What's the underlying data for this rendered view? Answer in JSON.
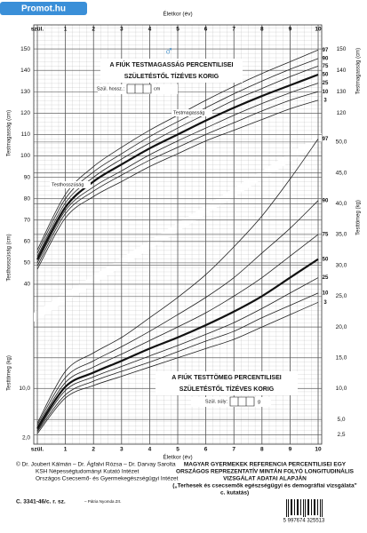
{
  "badge": "Promot.hu",
  "symbol": "♂",
  "chart_data": {
    "type": "line",
    "xlabel": "Életkor (év)",
    "ylabel": "Testmagasság (cm)",
    "ylabel_lower": "Testhosszúság (cm)",
    "y2label": "Testtömeg (kg)",
    "x": [
      0,
      1,
      2,
      3,
      4,
      5,
      6,
      7,
      8,
      9,
      10
    ],
    "xlim": [
      0,
      10
    ],
    "xticks": [
      {
        "value": 0,
        "label": "szül."
      },
      1,
      2,
      3,
      4,
      5,
      6,
      7,
      8,
      9,
      10
    ],
    "ylim": [
      35,
      160
    ],
    "yticks": [
      40,
      50,
      60,
      70,
      80,
      90,
      100,
      110,
      120,
      130,
      140,
      150
    ],
    "y_right_ticks": [
      120,
      130,
      140,
      150
    ],
    "y2lim": [
      2,
      52
    ],
    "y2ticks": [
      {
        "value": 2.5,
        "label": "2,5"
      },
      {
        "value": 5,
        "label": "5,0"
      },
      {
        "value": 10,
        "label": "10,0"
      },
      {
        "value": 15,
        "label": "15,0"
      },
      {
        "value": 20,
        "label": "20,0"
      },
      {
        "value": 25,
        "label": "25,0"
      },
      {
        "value": 30,
        "label": "30,0"
      },
      {
        "value": 35,
        "label": "35,0"
      },
      {
        "value": 40,
        "label": "40,0"
      },
      {
        "value": 45,
        "label": "45,0"
      },
      {
        "value": 50,
        "label": "50,0"
      }
    ],
    "y2_left_ticks": [
      {
        "value": 10,
        "label": "10,0"
      },
      {
        "value": 2,
        "label": "2,0"
      }
    ],
    "grid": true,
    "series": [
      {
        "name": "97",
        "axis": "y",
        "color": "#222",
        "width": 0.8,
        "values": [
          56,
          82,
          95,
          104,
          112,
          119,
          126,
          132.5,
          138.5,
          144,
          149.5
        ]
      },
      {
        "name": "90",
        "axis": "y",
        "color": "#222",
        "width": 0.8,
        "values": [
          54.5,
          80,
          92.5,
          101,
          109,
          116,
          122.5,
          129,
          135,
          140.5,
          145.5
        ]
      },
      {
        "name": "75",
        "axis": "y",
        "color": "#222",
        "width": 0.8,
        "values": [
          53,
          78,
          90,
          98.5,
          106,
          113,
          119.5,
          126,
          131.5,
          137,
          142
        ]
      },
      {
        "name": "50",
        "axis": "y",
        "color": "#111",
        "width": 2.2,
        "values": [
          51.5,
          76,
          88,
          96,
          103.5,
          110,
          116.5,
          122.5,
          128,
          133,
          138
        ]
      },
      {
        "name": "25",
        "axis": "y",
        "color": "#222",
        "width": 0.8,
        "values": [
          50,
          74.5,
          85.5,
          93,
          100.5,
          107,
          113,
          119,
          124.5,
          129.5,
          134
        ]
      },
      {
        "name": "10",
        "axis": "y",
        "color": "#222",
        "width": 0.8,
        "values": [
          48.5,
          73,
          83.5,
          91,
          98,
          104,
          110,
          115.5,
          121,
          126,
          130
        ]
      },
      {
        "name": "3",
        "axis": "y",
        "color": "#222",
        "width": 0.8,
        "values": [
          47,
          71,
          81,
          88,
          95,
          101,
          107,
          112,
          117,
          122,
          126
        ]
      },
      {
        "name": "97",
        "axis": "y2",
        "color": "#222",
        "width": 0.8,
        "values": [
          4.4,
          12.8,
          15.8,
          18.3,
          21.5,
          24.8,
          28.5,
          33,
          38,
          44,
          50.5
        ]
      },
      {
        "name": "90",
        "axis": "y2",
        "color": "#222",
        "width": 0.8,
        "values": [
          4.1,
          11.8,
          14.5,
          16.8,
          19.3,
          22,
          24.8,
          28,
          32,
          36,
          40.5
        ]
      },
      {
        "name": "75",
        "axis": "y2",
        "color": "#222",
        "width": 0.8,
        "values": [
          3.8,
          11,
          13.5,
          15.6,
          17.8,
          20,
          22.3,
          25,
          28,
          31.5,
          35
        ]
      },
      {
        "name": "50",
        "axis": "y2",
        "color": "#111",
        "width": 2.2,
        "values": [
          3.5,
          10.3,
          12.6,
          14.5,
          16.5,
          18.3,
          20.3,
          22.5,
          25,
          28,
          31
        ]
      },
      {
        "name": "25",
        "axis": "y2",
        "color": "#222",
        "width": 0.8,
        "values": [
          3.2,
          9.7,
          11.9,
          13.6,
          15.3,
          17,
          18.8,
          20.7,
          23,
          25.5,
          28
        ]
      },
      {
        "name": "10",
        "axis": "y2",
        "color": "#222",
        "width": 0.8,
        "values": [
          3,
          9,
          11.2,
          12.8,
          14.3,
          16,
          17.7,
          19.3,
          21.5,
          23.5,
          25.5
        ]
      },
      {
        "name": "3",
        "axis": "y2",
        "color": "#222",
        "width": 0.8,
        "values": [
          2.7,
          8.5,
          10.5,
          12,
          13.5,
          15,
          16.5,
          18,
          20,
          22,
          24
        ]
      }
    ],
    "annotations": [
      "Testhosszúság",
      "Testmagasság"
    ]
  },
  "height_box": {
    "title": [
      "A FIÚK TESTMAGASSÁG PERCENTILISEI",
      "SZÜLETÉSTŐL TÍZÉVES KORIG"
    ],
    "field": "Szül. hossz.:",
    "unit": "cm"
  },
  "weight_box": {
    "title": [
      "A FIÚK TESTTÖMEG PERCENTILISEI",
      "SZÜLETÉSTŐL TÍZÉVES KORIG"
    ],
    "field": "Szül. súly:",
    "unit": "g"
  },
  "footer": {
    "authors": [
      "© Dr. Joubert Kálmán – Dr. Ágfalvi Rózsa – Dr. Darvay Sarolta",
      "KSH Népességtudományi Kutató Intézet",
      "Országos Csecsemő- és Gyermekegészségügyi Intézet"
    ],
    "code": "C. 3341-46/c. r. sz.",
    "printer": "– Pátria Nyomda Zrt.",
    "source": [
      "MAGYAR GYERMEKEK REFERENCIA PERCENTILISEI EGY",
      "ORSZÁGOS REPREZENTATÍV MINTÁN FOLYÓ LONGITUDINÁLIS",
      "VIZSGÁLAT ADATAI ALAPJÁN",
      "(„Terhesek és csecsemők egészségügyi és demográfiai vizsgálata”",
      "c. kutatás)"
    ],
    "barcode": "5 997674 325513"
  }
}
